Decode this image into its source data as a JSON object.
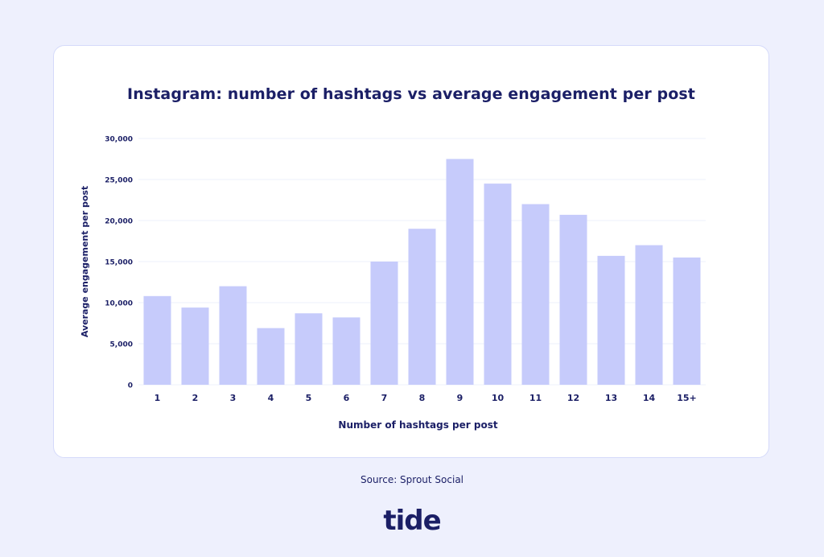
{
  "source_text": "Source: Sprout Social",
  "logo_text": "tide",
  "colors": {
    "background": "#eef0fd",
    "card": "#ffffff",
    "bar": "#c6cbfb",
    "text": "#1b1f66",
    "grid": "#eef0fb"
  },
  "chart_data": {
    "type": "bar",
    "title": "Instagram: number of hashtags vs average engagement per post",
    "xlabel": "Number of hashtags per post",
    "ylabel": "Average engagement per post",
    "categories": [
      "1",
      "2",
      "3",
      "4",
      "5",
      "6",
      "7",
      "8",
      "9",
      "10",
      "11",
      "12",
      "13",
      "14",
      "15+"
    ],
    "values": [
      10800,
      9400,
      12000,
      6900,
      8700,
      8200,
      15000,
      19000,
      27500,
      24500,
      22000,
      20700,
      15700,
      17000,
      15500
    ],
    "ylim": [
      0,
      30000
    ],
    "yticks": [
      0,
      5000,
      10000,
      15000,
      20000,
      25000,
      30000
    ],
    "ytick_labels": [
      "0",
      "5,000",
      "10,000",
      "15,000",
      "20,000",
      "25,000",
      "30,000"
    ],
    "grid": true,
    "legend": "none"
  }
}
